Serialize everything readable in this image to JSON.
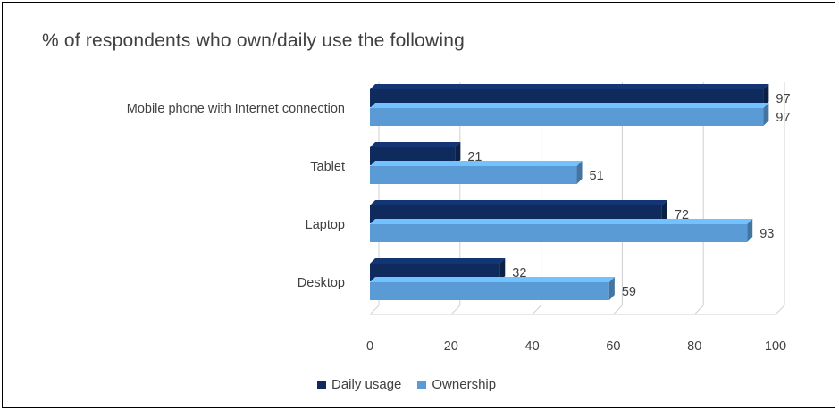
{
  "chart_data": {
    "type": "bar",
    "orientation": "horizontal",
    "title": "% of respondents who own/daily use the following",
    "categories": [
      "Mobile phone with Internet connection",
      "Tablet",
      "Laptop",
      "Desktop"
    ],
    "series": [
      {
        "name": "Daily usage",
        "values": [
          97,
          21,
          72,
          32
        ],
        "color": "#0f2a5c"
      },
      {
        "name": "Ownership",
        "values": [
          97,
          51,
          93,
          59
        ],
        "color": "#5b9bd5"
      }
    ],
    "xlim": [
      0,
      100
    ],
    "xticks": [
      "0",
      "20",
      "40",
      "60",
      "80",
      "100"
    ],
    "grid": true,
    "legend_position": "bottom"
  }
}
